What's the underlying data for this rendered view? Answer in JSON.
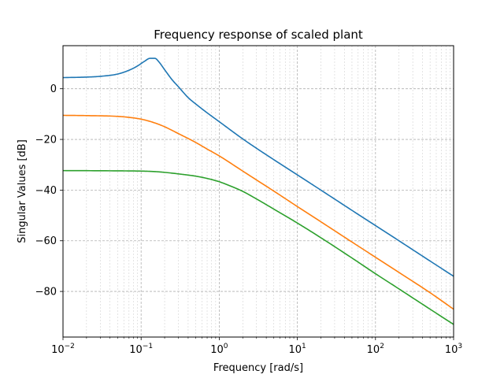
{
  "chart_data": {
    "type": "line",
    "title": "Frequency response of scaled plant",
    "xlabel": "Frequency [rad/s]",
    "ylabel": "Singular Values [dB]",
    "xscale": "log",
    "xlim": [
      0.01,
      1000
    ],
    "ylim": [
      -98,
      17
    ],
    "x_ticks": [
      {
        "value": 0.01,
        "base": "10",
        "exp": "−2"
      },
      {
        "value": 0.1,
        "base": "10",
        "exp": "−1"
      },
      {
        "value": 1,
        "base": "10",
        "exp": "0"
      },
      {
        "value": 10,
        "base": "10",
        "exp": "1"
      },
      {
        "value": 100,
        "base": "10",
        "exp": "2"
      },
      {
        "value": 1000,
        "base": "10",
        "exp": "3"
      }
    ],
    "y_ticks": [
      {
        "value": 0,
        "label": "0"
      },
      {
        "value": -20,
        "label": "−20"
      },
      {
        "value": -40,
        "label": "−40"
      },
      {
        "value": -60,
        "label": "−60"
      },
      {
        "value": -80,
        "label": "−80"
      }
    ],
    "grid": true,
    "legend": "none",
    "series": [
      {
        "color": "#1f77b4",
        "x": [
          0.01,
          0.02,
          0.03,
          0.05,
          0.07,
          0.09,
          0.11,
          0.13,
          0.15,
          0.17,
          0.2,
          0.25,
          0.3,
          0.4,
          0.5,
          0.7,
          1,
          2,
          3,
          5,
          10,
          20,
          50,
          100,
          200,
          500,
          1000
        ],
        "y": [
          4.4,
          4.6,
          4.9,
          5.8,
          7.3,
          9.0,
          10.8,
          12.0,
          12.0,
          10.5,
          7.5,
          3.5,
          0.8,
          -3.5,
          -6.0,
          -9.5,
          -13.0,
          -19.8,
          -23.5,
          -28.0,
          -34.0,
          -40.0,
          -48.0,
          -54.0,
          -60.0,
          -68.0,
          -74.0
        ]
      },
      {
        "color": "#ff7f0e",
        "x": [
          0.01,
          0.02,
          0.05,
          0.07,
          0.1,
          0.15,
          0.2,
          0.3,
          0.5,
          0.7,
          1,
          2,
          3,
          5,
          10,
          20,
          50,
          100,
          200,
          500,
          1000
        ],
        "y": [
          -10.5,
          -10.6,
          -10.9,
          -11.3,
          -12.0,
          -13.5,
          -15.0,
          -17.7,
          -21.2,
          -23.8,
          -26.5,
          -32.5,
          -36.0,
          -40.4,
          -46.5,
          -52.5,
          -60.5,
          -66.5,
          -72.5,
          -80.5,
          -87.0
        ]
      },
      {
        "color": "#2ca02c",
        "x": [
          0.01,
          0.05,
          0.1,
          0.15,
          0.2,
          0.3,
          0.5,
          0.7,
          1,
          1.5,
          2,
          3,
          5,
          10,
          20,
          50,
          100,
          200,
          500,
          1000
        ],
        "y": [
          -32.3,
          -32.4,
          -32.5,
          -32.7,
          -33.0,
          -33.6,
          -34.5,
          -35.4,
          -36.7,
          -38.8,
          -40.5,
          -43.5,
          -47.5,
          -53.0,
          -58.8,
          -66.8,
          -73.0,
          -79.0,
          -87.0,
          -93.0
        ]
      }
    ]
  }
}
